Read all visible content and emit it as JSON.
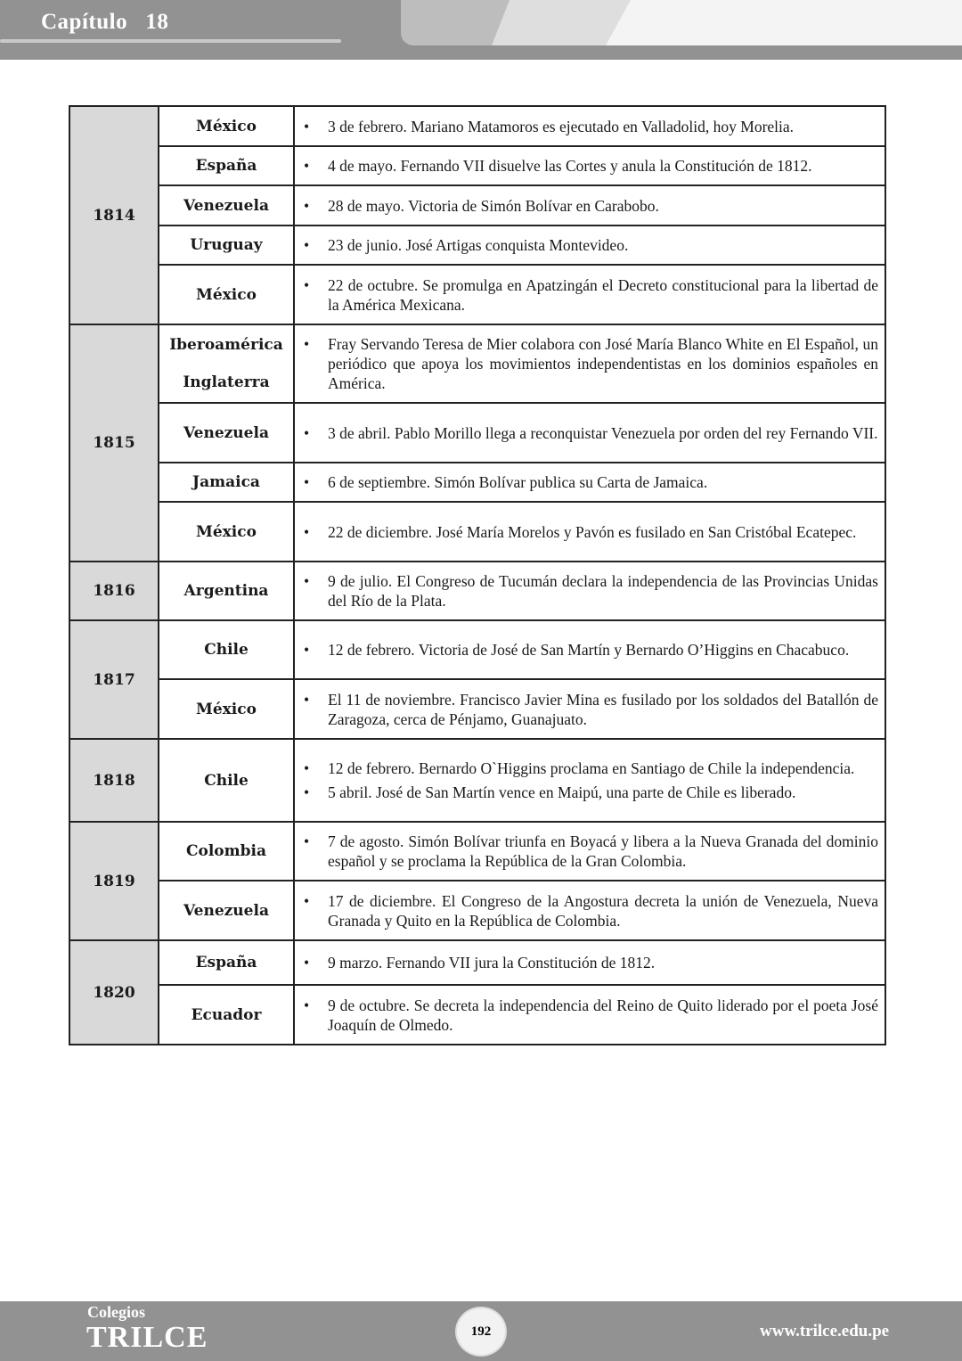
{
  "header": {
    "chapter": "Capítulo   18"
  },
  "table": [
    {
      "year": "1814",
      "rows": [
        {
          "country": [
            "México"
          ],
          "events": [
            "3 de febrero. Mariano Matamoros es ejecutado en Valladolid, hoy Morelia."
          ]
        },
        {
          "country": [
            "España"
          ],
          "events": [
            "4 de mayo. Fernando VII disuelve las Cortes y anula la Constitución de 1812."
          ]
        },
        {
          "country": [
            "Venezuela"
          ],
          "events": [
            "28 de mayo. Victoria de Simón Bolívar en Carabobo."
          ]
        },
        {
          "country": [
            "Uruguay"
          ],
          "events": [
            "23 de junio. José Artigas conquista Montevideo."
          ]
        },
        {
          "country": [
            "México"
          ],
          "events": [
            "22 de octubre. Se promulga en Apatzingán el Decreto constitucional para la libertad de la América Mexicana."
          ]
        }
      ]
    },
    {
      "year": "1815",
      "rows": [
        {
          "country": [
            "Iberoamérica",
            "Inglaterra"
          ],
          "events": [
            "Fray Servando Teresa de Mier colabora con José María Blanco White en El Español, un periódico que apoya los movimientos independentistas en los dominios españoles en América."
          ]
        },
        {
          "country": [
            "Venezuela"
          ],
          "events": [
            "3 de abril. Pablo Morillo llega a reconquistar Venezuela por orden del rey Fernando VII."
          ]
        },
        {
          "country": [
            "Jamaica"
          ],
          "events": [
            "6 de septiembre. Simón Bolívar publica su Carta de Jamaica."
          ]
        },
        {
          "country": [
            "México"
          ],
          "events": [
            "22 de diciembre. José María Morelos y Pavón es fusilado en San Cristóbal Ecatepec."
          ]
        }
      ]
    },
    {
      "year": "1816",
      "rows": [
        {
          "country": [
            "Argentina"
          ],
          "events": [
            "9 de julio. El Congreso de Tucumán declara la independencia de las Provincias Unidas del Río de la Plata."
          ]
        }
      ]
    },
    {
      "year": "1817",
      "rows": [
        {
          "country": [
            "Chile"
          ],
          "events": [
            "12 de febrero. Victoria de José de San Martín y Bernardo O’Higgins en Chacabuco."
          ]
        },
        {
          "country": [
            "México"
          ],
          "events": [
            "El 11 de noviembre. Francisco Javier Mina es fusilado por los soldados del Batallón de Zaragoza, cerca de Pénjamo, Guanajuato."
          ]
        }
      ]
    },
    {
      "year": "1818",
      "rows": [
        {
          "country": [
            "Chile"
          ],
          "events": [
            "12 de febrero. Bernardo O`Higgins proclama en Santiago de Chile la independencia.",
            "5 abril. José de San Martín vence en Maipú, una parte de Chile es liberado."
          ]
        }
      ]
    },
    {
      "year": "1819",
      "rows": [
        {
          "country": [
            "Colombia"
          ],
          "events": [
            "7 de agosto. Simón Bolívar triunfa en Boyacá y libera a la Nueva Granada del dominio español y se proclama la República de la Gran Colombia."
          ]
        },
        {
          "country": [
            "Venezuela"
          ],
          "events": [
            "17 de diciembre. El Congreso de la Angostura decreta la unión de Venezuela, Nueva Granada y Quito en la República de Colombia."
          ]
        }
      ]
    },
    {
      "year": "1820",
      "rows": [
        {
          "country": [
            "España"
          ],
          "events": [
            "9 marzo. Fernando VII jura la Constitución de 1812."
          ]
        },
        {
          "country": [
            "Ecuador"
          ],
          "events": [
            "9 de octubre. Se decreta la independencia del Reino de Quito liderado por el poeta José Joaquín de Olmedo."
          ]
        }
      ]
    }
  ],
  "bullet": "•",
  "footer": {
    "brand_small": "Colegios",
    "brand": "TRILCE",
    "page": "192",
    "url": "www.trilce.edu.pe"
  }
}
